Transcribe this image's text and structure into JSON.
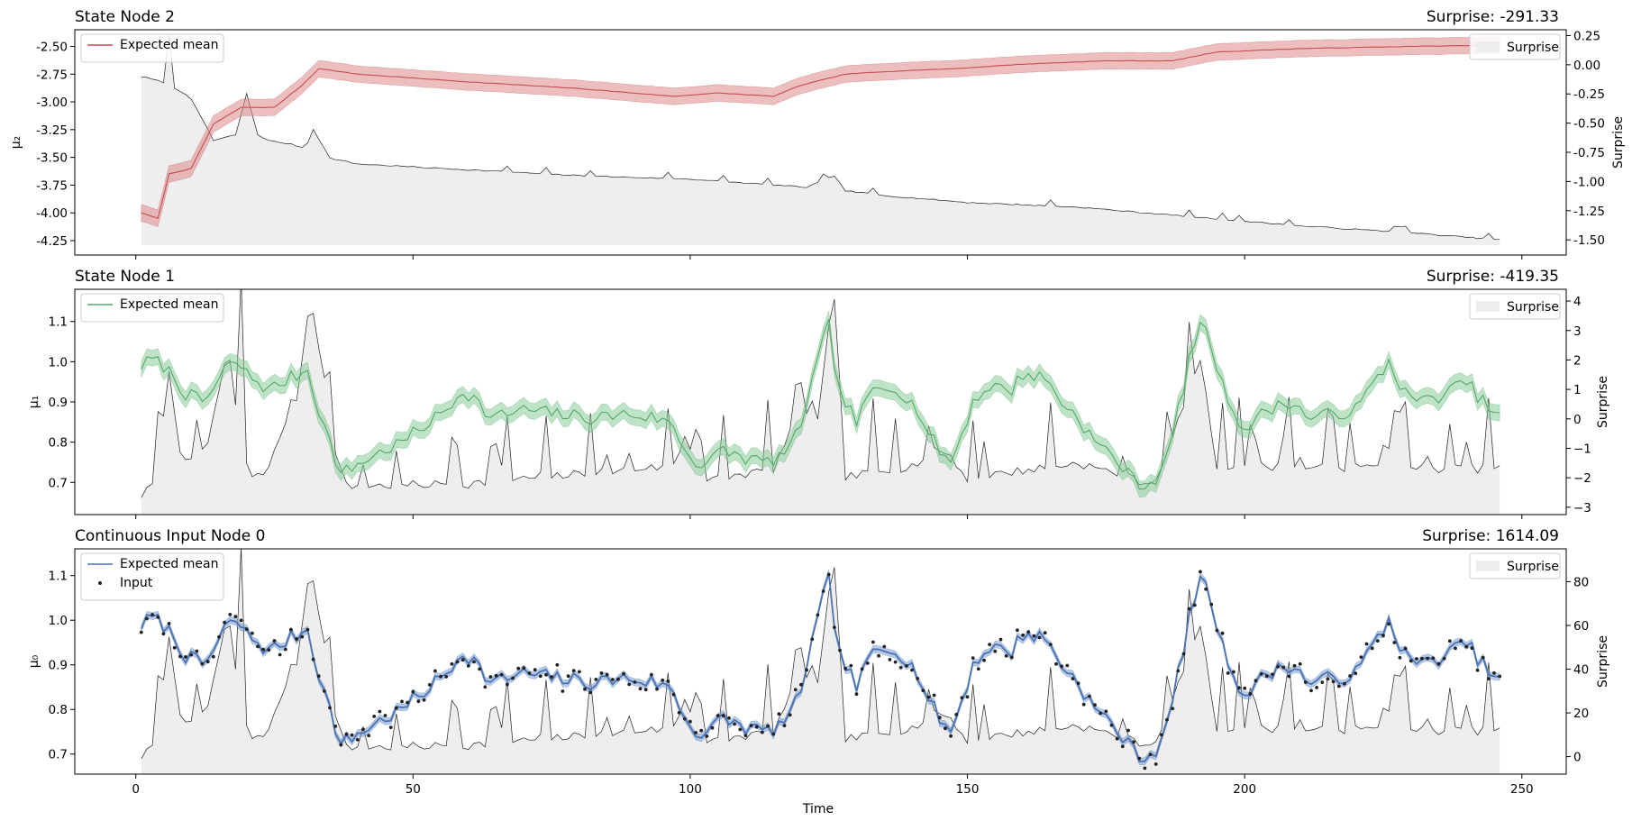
{
  "chart_data": [
    {
      "type": "line",
      "title": "State Node 2",
      "surprise_title": "Surprise: -291.33",
      "ylabel_left": "μ₂",
      "ylabel_right": "Surprise",
      "xlim": [
        -11,
        258
      ],
      "ylim_left": [
        -4.38,
        -2.35
      ],
      "ylim_right": [
        -1.63,
        0.3
      ],
      "yticks_left": [
        -4.25,
        -4.0,
        -3.75,
        -3.5,
        -3.25,
        -3.0,
        -2.75,
        -2.5
      ],
      "yticks_left_labels": [
        "-4.25",
        "-4.00",
        "-3.75",
        "-3.50",
        "-3.25",
        "-3.00",
        "-2.75",
        "-2.50"
      ],
      "yticks_right": [
        -1.5,
        -1.25,
        -1.0,
        -0.75,
        -0.5,
        -0.25,
        0.0,
        0.25
      ],
      "yticks_right_labels": [
        "-1.50",
        "-1.25",
        "-1.00",
        "-0.75",
        "-0.50",
        "-0.25",
        "0.00",
        "0.25"
      ],
      "xticks": [
        0,
        50,
        100,
        150,
        200,
        250
      ],
      "xtick_labels": [],
      "line_color": "#c44e52",
      "band_color": "#dd8888",
      "legend_left": [
        "Expected mean"
      ],
      "legend_right": "Surprise",
      "mean_knots": [
        [
          1,
          -4.0
        ],
        [
          4,
          -4.05
        ],
        [
          6,
          -3.65
        ],
        [
          10,
          -3.6
        ],
        [
          14,
          -3.2
        ],
        [
          19,
          -3.05
        ],
        [
          25,
          -3.05
        ],
        [
          30,
          -2.85
        ],
        [
          33,
          -2.7
        ],
        [
          40,
          -2.75
        ],
        [
          60,
          -2.82
        ],
        [
          80,
          -2.88
        ],
        [
          97,
          -2.95
        ],
        [
          105,
          -2.92
        ],
        [
          115,
          -2.95
        ],
        [
          120,
          -2.85
        ],
        [
          128,
          -2.75
        ],
        [
          138,
          -2.72
        ],
        [
          148,
          -2.7
        ],
        [
          160,
          -2.66
        ],
        [
          175,
          -2.63
        ],
        [
          187,
          -2.63
        ],
        [
          195,
          -2.55
        ],
        [
          210,
          -2.52
        ],
        [
          230,
          -2.5
        ],
        [
          246,
          -2.49
        ]
      ],
      "band_width": 0.075,
      "surprise_knots": [
        [
          1,
          -0.1
        ],
        [
          5,
          -0.15
        ],
        [
          6,
          0.25
        ],
        [
          7,
          -0.2
        ],
        [
          9,
          -0.25
        ],
        [
          10,
          -0.3
        ],
        [
          13,
          -0.55
        ],
        [
          14,
          -0.65
        ],
        [
          18,
          -0.6
        ],
        [
          20,
          -0.25
        ],
        [
          22,
          -0.6
        ],
        [
          24,
          -0.65
        ],
        [
          28,
          -0.68
        ],
        [
          31,
          -0.72
        ],
        [
          32,
          -0.55
        ],
        [
          35,
          -0.8
        ],
        [
          40,
          -0.85
        ],
        [
          60,
          -0.9
        ],
        [
          80,
          -0.95
        ],
        [
          100,
          -0.98
        ],
        [
          112,
          -1.02
        ],
        [
          121,
          -1.05
        ],
        [
          126,
          -0.95
        ],
        [
          128,
          -1.08
        ],
        [
          135,
          -1.12
        ],
        [
          150,
          -1.18
        ],
        [
          170,
          -1.22
        ],
        [
          190,
          -1.3
        ],
        [
          210,
          -1.38
        ],
        [
          230,
          -1.44
        ],
        [
          246,
          -1.5
        ]
      ]
    },
    {
      "type": "line",
      "title": "State Node 1",
      "surprise_title": "Surprise: -419.35",
      "ylabel_left": "μ₁",
      "ylabel_right": "Surprise",
      "xlim": [
        -11,
        258
      ],
      "ylim_left": [
        0.62,
        1.18
      ],
      "ylim_right": [
        -3.25,
        4.4
      ],
      "yticks_left": [
        0.7,
        0.8,
        0.9,
        1.0,
        1.1
      ],
      "yticks_left_labels": [
        "0.7",
        "0.8",
        "0.9",
        "1.0",
        "1.1"
      ],
      "yticks_right": [
        -3,
        -2,
        -1,
        0,
        1,
        2,
        3,
        4
      ],
      "yticks_right_labels": [
        "−3",
        "−2",
        "−1",
        "0",
        "1",
        "2",
        "3",
        "4"
      ],
      "xticks": [
        0,
        50,
        100,
        150,
        200,
        250
      ],
      "xtick_labels": [],
      "line_color": "#55a868",
      "band_color": "#88cc99",
      "legend_left": [
        "Expected mean"
      ],
      "legend_right": "Surprise",
      "band_width": 0.02
    },
    {
      "type": "line",
      "title": "Continuous Input Node 0",
      "surprise_title": "Surprise: 1614.09",
      "ylabel_left": "μ₀",
      "ylabel_right": "Surprise",
      "xlabel": "Time",
      "xlim": [
        -11,
        258
      ],
      "ylim_left": [
        0.655,
        1.16
      ],
      "ylim_right": [
        -8,
        95
      ],
      "yticks_left": [
        0.7,
        0.8,
        0.9,
        1.0,
        1.1
      ],
      "yticks_left_labels": [
        "0.7",
        "0.8",
        "0.9",
        "1.0",
        "1.1"
      ],
      "yticks_right": [
        0,
        20,
        40,
        60,
        80
      ],
      "yticks_right_labels": [
        "0",
        "20",
        "40",
        "60",
        "80"
      ],
      "xticks": [
        0,
        50,
        100,
        150,
        200,
        250
      ],
      "xtick_labels": [
        "0",
        "50",
        "100",
        "150",
        "200",
        "250"
      ],
      "line_color": "#4c72b0",
      "band_color": "#7a9fd6",
      "legend_left": [
        "Expected mean",
        "Input"
      ],
      "legend_right": "Surprise",
      "band_width": 0.008,
      "shared_series": {
        "knots": [
          [
            1,
            0.99
          ],
          [
            3,
            1.005
          ],
          [
            5,
            0.99
          ],
          [
            7,
            0.96
          ],
          [
            9,
            0.92
          ],
          [
            12,
            0.9
          ],
          [
            14,
            0.93
          ],
          [
            16,
            0.98
          ],
          [
            18,
            1.0
          ],
          [
            20,
            0.97
          ],
          [
            24,
            0.93
          ],
          [
            28,
            0.96
          ],
          [
            31,
            0.98
          ],
          [
            33,
            0.88
          ],
          [
            35,
            0.8
          ],
          [
            37,
            0.72
          ],
          [
            42,
            0.76
          ],
          [
            48,
            0.8
          ],
          [
            52,
            0.84
          ],
          [
            56,
            0.88
          ],
          [
            59,
            0.93
          ],
          [
            61,
            0.91
          ],
          [
            64,
            0.86
          ],
          [
            70,
            0.88
          ],
          [
            76,
            0.87
          ],
          [
            82,
            0.86
          ],
          [
            88,
            0.87
          ],
          [
            94,
            0.86
          ],
          [
            97,
            0.84
          ],
          [
            99,
            0.78
          ],
          [
            102,
            0.74
          ],
          [
            106,
            0.78
          ],
          [
            110,
            0.76
          ],
          [
            114,
            0.75
          ],
          [
            118,
            0.78
          ],
          [
            120,
            0.85
          ],
          [
            122,
            0.95
          ],
          [
            124,
            1.05
          ],
          [
            125,
            1.09
          ],
          [
            126,
            1.0
          ],
          [
            127,
            0.92
          ],
          [
            130,
            0.85
          ],
          [
            133,
            0.93
          ],
          [
            137,
            0.94
          ],
          [
            141,
            0.88
          ],
          [
            143,
            0.82
          ],
          [
            145,
            0.78
          ],
          [
            147,
            0.75
          ],
          [
            149,
            0.82
          ],
          [
            151,
            0.9
          ],
          [
            154,
            0.94
          ],
          [
            158,
            0.93
          ],
          [
            160,
            0.97
          ],
          [
            164,
            0.96
          ],
          [
            167,
            0.9
          ],
          [
            170,
            0.86
          ],
          [
            173,
            0.8
          ],
          [
            176,
            0.77
          ],
          [
            179,
            0.72
          ],
          [
            182,
            0.69
          ],
          [
            184,
            0.71
          ],
          [
            186,
            0.76
          ],
          [
            188,
            0.88
          ],
          [
            190,
            1.0
          ],
          [
            192,
            1.1
          ],
          [
            194,
            1.04
          ],
          [
            196,
            0.94
          ],
          [
            198,
            0.88
          ],
          [
            200,
            0.83
          ],
          [
            204,
            0.88
          ],
          [
            208,
            0.9
          ],
          [
            212,
            0.86
          ],
          [
            216,
            0.87
          ],
          [
            220,
            0.88
          ],
          [
            224,
            0.96
          ],
          [
            226,
            1.0
          ],
          [
            229,
            0.92
          ],
          [
            232,
            0.9
          ],
          [
            236,
            0.92
          ],
          [
            240,
            0.95
          ],
          [
            243,
            0.9
          ],
          [
            246,
            0.86
          ]
        ],
        "surprise_knots": [
          [
            1,
            -2.6
          ],
          [
            3,
            -2.3
          ],
          [
            6,
            1.5
          ],
          [
            8,
            -1.0
          ],
          [
            10,
            -1.5
          ],
          [
            13,
            -0.8
          ],
          [
            16,
            1.8
          ],
          [
            18,
            0.5
          ],
          [
            19,
            3.3
          ],
          [
            20,
            -2.0
          ],
          [
            24,
            -1.7
          ],
          [
            28,
            0.5
          ],
          [
            31,
            1.2
          ],
          [
            32,
            3.7
          ],
          [
            35,
            0.2
          ],
          [
            37,
            -2.3
          ],
          [
            60,
            -2.2
          ],
          [
            97,
            -1.6
          ],
          [
            99,
            -0.6
          ],
          [
            103,
            -2.1
          ],
          [
            115,
            -1.7
          ],
          [
            118,
            -0.5
          ],
          [
            122,
            0.5
          ],
          [
            124,
            -0.7
          ],
          [
            126,
            4.2
          ],
          [
            128,
            -2.0
          ],
          [
            140,
            -1.6
          ],
          [
            145,
            -1.0
          ],
          [
            150,
            -2.0
          ],
          [
            170,
            -1.5
          ],
          [
            183,
            -2.2
          ],
          [
            186,
            -1.4
          ],
          [
            190,
            1.2
          ],
          [
            192,
            2.0
          ],
          [
            195,
            -1.6
          ],
          [
            246,
            -1.7
          ]
        ]
      }
    }
  ]
}
